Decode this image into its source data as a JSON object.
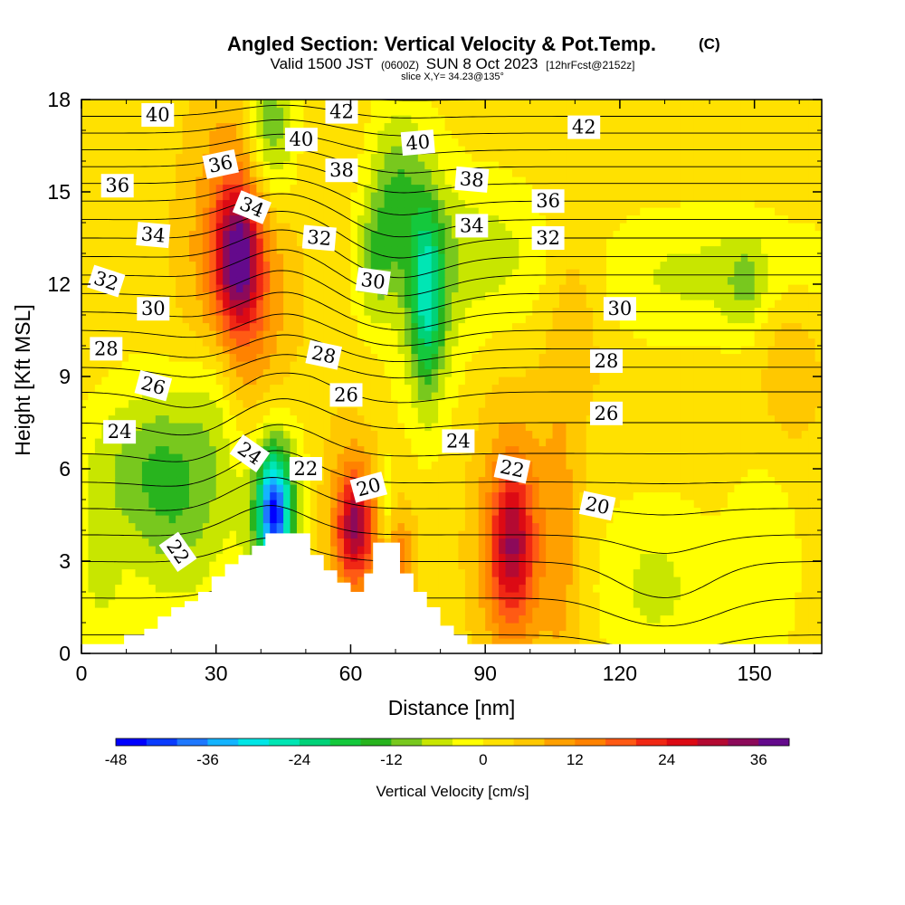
{
  "title": {
    "main": "Angled Section: Vertical Velocity & Pot.Temp.",
    "main_suffix": "(C)",
    "valid_prefix": "Valid 1500 JST",
    "valid_small": "(0600Z)",
    "valid_main": "SUN 8 Oct 2023",
    "valid_small2": "[12hrFcst@2152z]",
    "slice": "slice X,Y= 34.23@135°"
  },
  "chart_data": {
    "type": "heatmap",
    "title": "Angled Section: Vertical Velocity & Pot.Temp.",
    "xlabel": "Distance [nm]",
    "ylabel": "Height [Kft MSL]",
    "xlim": [
      0,
      165
    ],
    "ylim": [
      0,
      18
    ],
    "x_ticks": [
      0,
      30,
      60,
      90,
      120,
      150
    ],
    "x_tick_labels": [
      "0",
      "30",
      "60",
      "90",
      "120",
      "150"
    ],
    "y_ticks": [
      0,
      3,
      6,
      9,
      12,
      15,
      18
    ],
    "y_tick_labels": [
      "0",
      "3",
      "6",
      "9",
      "12",
      "15",
      "18"
    ],
    "colorbar": {
      "title": "Vertical Velocity [cm/s]",
      "min": -48,
      "max": 40,
      "step": 4,
      "tick_values": [
        -48,
        -36,
        -24,
        -12,
        0,
        12,
        24,
        36
      ],
      "tick_labels": [
        "-48",
        "-36",
        "-24",
        "-12",
        "0",
        "12",
        "24",
        "36"
      ],
      "colors": [
        "#0000ff",
        "#0a3cff",
        "#1e78ff",
        "#14b4ff",
        "#00e6e6",
        "#00e6b4",
        "#00d278",
        "#14c83c",
        "#28b41e",
        "#78c81e",
        "#c8e600",
        "#ffff00",
        "#ffe100",
        "#ffc800",
        "#ffa000",
        "#ff8200",
        "#ff5a14",
        "#f02814",
        "#dc0a14",
        "#b40a32",
        "#8c0a5a",
        "#640a8c"
      ]
    },
    "terrain_profile": [
      [
        0,
        0.3
      ],
      [
        9.5,
        0.3
      ],
      [
        9.5,
        0.6
      ],
      [
        14,
        0.6
      ],
      [
        14,
        0.8
      ],
      [
        17,
        0.8
      ],
      [
        17,
        1.2
      ],
      [
        20,
        1.2
      ],
      [
        20,
        1.5
      ],
      [
        23,
        1.5
      ],
      [
        23,
        1.7
      ],
      [
        26,
        1.7
      ],
      [
        26,
        2.0
      ],
      [
        29,
        2.0
      ],
      [
        29,
        2.5
      ],
      [
        32,
        2.5
      ],
      [
        32,
        2.9
      ],
      [
        35,
        2.9
      ],
      [
        35,
        3.2
      ],
      [
        38,
        3.2
      ],
      [
        38,
        3.5
      ],
      [
        41,
        3.5
      ],
      [
        41,
        3.9
      ],
      [
        51,
        3.9
      ],
      [
        51,
        3.2
      ],
      [
        54,
        3.2
      ],
      [
        54,
        2.7
      ],
      [
        57,
        2.7
      ],
      [
        57,
        2.3
      ],
      [
        60,
        2.3
      ],
      [
        60,
        2.0
      ],
      [
        63,
        2.0
      ],
      [
        63,
        2.6
      ],
      [
        65,
        2.6
      ],
      [
        65,
        3.6
      ],
      [
        71,
        3.6
      ],
      [
        71,
        2.6
      ],
      [
        74,
        2.6
      ],
      [
        74,
        2.0
      ],
      [
        77,
        2.0
      ],
      [
        77,
        1.5
      ],
      [
        80,
        1.5
      ],
      [
        80,
        0.9
      ],
      [
        83,
        0.9
      ],
      [
        83,
        0.6
      ],
      [
        86,
        0.6
      ],
      [
        86,
        0.3
      ],
      [
        165,
        0.3
      ]
    ],
    "velocity_field": {
      "background": 2,
      "blobs": [
        {
          "x": 35,
          "y": 12.9,
          "sx": 3.5,
          "sy": 1.6,
          "value": 26
        },
        {
          "x": 35,
          "y": 12.8,
          "sx": 7,
          "sy": 3.5,
          "value": 12
        },
        {
          "x": 34,
          "y": 10.5,
          "sx": 9,
          "sy": 5,
          "value": 4
        },
        {
          "x": 96,
          "y": 3.5,
          "sx": 3.5,
          "sy": 1.8,
          "value": 22
        },
        {
          "x": 96,
          "y": 3.8,
          "sx": 6.5,
          "sy": 3.2,
          "value": 9
        },
        {
          "x": 61,
          "y": 4.2,
          "sx": 2.5,
          "sy": 1.2,
          "value": 22
        },
        {
          "x": 60,
          "y": 4.0,
          "sx": 5,
          "sy": 2.2,
          "value": 10
        },
        {
          "x": 70,
          "y": 3.0,
          "sx": 3,
          "sy": 1.2,
          "value": 12
        },
        {
          "x": 107,
          "y": 3.5,
          "sx": 3,
          "sy": 3.5,
          "value": 7
        },
        {
          "x": 110,
          "y": 11.5,
          "sx": 5,
          "sy": 2.5,
          "value": 6
        },
        {
          "x": 43,
          "y": 4.6,
          "sx": 2.5,
          "sy": 1.4,
          "value": -34
        },
        {
          "x": 43,
          "y": 4.6,
          "sx": 5,
          "sy": 2.2,
          "value": -14
        },
        {
          "x": 22,
          "y": 5.2,
          "sx": 9,
          "sy": 2.6,
          "value": -14
        },
        {
          "x": 10,
          "y": 6.2,
          "sx": 9,
          "sy": 1.6,
          "value": -6
        },
        {
          "x": 30,
          "y": 8.5,
          "sx": 4,
          "sy": 2,
          "value": -8
        },
        {
          "x": 42,
          "y": 17,
          "sx": 4,
          "sy": 2,
          "value": -16
        },
        {
          "x": 70,
          "y": 15,
          "sx": 4,
          "sy": 2,
          "value": -12
        },
        {
          "x": 77,
          "y": 11.5,
          "sx": 2.5,
          "sy": 2.2,
          "value": -18
        },
        {
          "x": 77,
          "y": 11.8,
          "sx": 5.5,
          "sy": 3,
          "value": -9
        },
        {
          "x": 65,
          "y": 12.8,
          "sx": 3,
          "sy": 1.5,
          "value": -10
        },
        {
          "x": 90,
          "y": 13,
          "sx": 10,
          "sy": 1.8,
          "value": -7
        },
        {
          "x": 140,
          "y": 12.3,
          "sx": 22,
          "sy": 1.5,
          "value": -7
        },
        {
          "x": 148,
          "y": 12,
          "sx": 3,
          "sy": 1,
          "value": -6
        },
        {
          "x": 128,
          "y": 2.2,
          "sx": 9,
          "sy": 2,
          "value": -7
        },
        {
          "x": 152,
          "y": 3,
          "sx": 6,
          "sy": 2.5,
          "value": -5
        },
        {
          "x": 68,
          "y": 4.5,
          "sx": 1.2,
          "sy": 1.3,
          "value": -10
        },
        {
          "x": 4,
          "y": 2.5,
          "sx": 4,
          "sy": 2,
          "value": -6
        },
        {
          "x": 158,
          "y": 9.5,
          "sx": 5,
          "sy": 2,
          "value": 6
        }
      ]
    },
    "theta_field": {
      "min": 18,
      "max": 43,
      "step": 1,
      "profile": [
        [
          0,
          17.5
        ],
        [
          3,
          20
        ],
        [
          6,
          23.5
        ],
        [
          9,
          26.5
        ],
        [
          12,
          31.5
        ],
        [
          15,
          36.5
        ],
        [
          18,
          42
        ]
      ],
      "perturbations": [
        {
          "x": 45,
          "y": 14,
          "sx": 10,
          "sy": 3,
          "value": -1.5
        },
        {
          "x": 70,
          "y": 12,
          "sx": 10,
          "sy": 2.5,
          "value": 1.2
        },
        {
          "x": 40,
          "y": 6,
          "sx": 10,
          "sy": 2.5,
          "value": -1.5
        },
        {
          "x": 30,
          "y": 8,
          "sx": 10,
          "sy": 2.5,
          "value": 1.0
        },
        {
          "x": 130,
          "y": 2,
          "sx": 10,
          "sy": 1.5,
          "value": 1.0
        }
      ]
    },
    "contour_labels": [
      {
        "text": "40",
        "x": 17,
        "y": 17.5,
        "angle": 0
      },
      {
        "text": "42",
        "x": 58,
        "y": 17.6,
        "angle": 0
      },
      {
        "text": "42",
        "x": 112,
        "y": 17.1,
        "angle": 0
      },
      {
        "text": "40",
        "x": 49,
        "y": 16.7,
        "angle": 0
      },
      {
        "text": "40",
        "x": 75,
        "y": 16.6,
        "angle": -5
      },
      {
        "text": "36",
        "x": 8,
        "y": 15.2,
        "angle": 0
      },
      {
        "text": "36",
        "x": 31,
        "y": 15.9,
        "angle": -12
      },
      {
        "text": "38",
        "x": 58,
        "y": 15.7,
        "angle": 0
      },
      {
        "text": "38",
        "x": 87,
        "y": 15.4,
        "angle": 5
      },
      {
        "text": "36",
        "x": 104,
        "y": 14.7,
        "angle": 0
      },
      {
        "text": "34",
        "x": 38,
        "y": 14.5,
        "angle": 22
      },
      {
        "text": "34",
        "x": 16,
        "y": 13.6,
        "angle": 5
      },
      {
        "text": "32",
        "x": 53,
        "y": 13.5,
        "angle": 5
      },
      {
        "text": "34",
        "x": 87,
        "y": 13.9,
        "angle": 0
      },
      {
        "text": "32",
        "x": 104,
        "y": 13.5,
        "angle": 0
      },
      {
        "text": "32",
        "x": 5.5,
        "y": 12.1,
        "angle": 18
      },
      {
        "text": "30",
        "x": 65,
        "y": 12.1,
        "angle": 8
      },
      {
        "text": "30",
        "x": 16,
        "y": 11.2,
        "angle": 0
      },
      {
        "text": "30",
        "x": 120,
        "y": 11.2,
        "angle": 0
      },
      {
        "text": "28",
        "x": 5.5,
        "y": 9.9,
        "angle": 0
      },
      {
        "text": "28",
        "x": 54,
        "y": 9.7,
        "angle": 12
      },
      {
        "text": "28",
        "x": 117,
        "y": 9.5,
        "angle": 0
      },
      {
        "text": "26",
        "x": 16,
        "y": 8.7,
        "angle": 15
      },
      {
        "text": "26",
        "x": 59,
        "y": 8.4,
        "angle": 0
      },
      {
        "text": "26",
        "x": 117,
        "y": 7.8,
        "angle": 0
      },
      {
        "text": "24",
        "x": 8.5,
        "y": 7.2,
        "angle": 0
      },
      {
        "text": "24",
        "x": 37.5,
        "y": 6.5,
        "angle": 35
      },
      {
        "text": "24",
        "x": 84,
        "y": 6.9,
        "angle": 0
      },
      {
        "text": "22",
        "x": 50,
        "y": 6.0,
        "angle": 0
      },
      {
        "text": "22",
        "x": 96,
        "y": 6.0,
        "angle": 12
      },
      {
        "text": "20",
        "x": 64,
        "y": 5.4,
        "angle": -15
      },
      {
        "text": "20",
        "x": 115,
        "y": 4.8,
        "angle": 12
      },
      {
        "text": "22",
        "x": 21.5,
        "y": 3.3,
        "angle": 55
      }
    ]
  }
}
